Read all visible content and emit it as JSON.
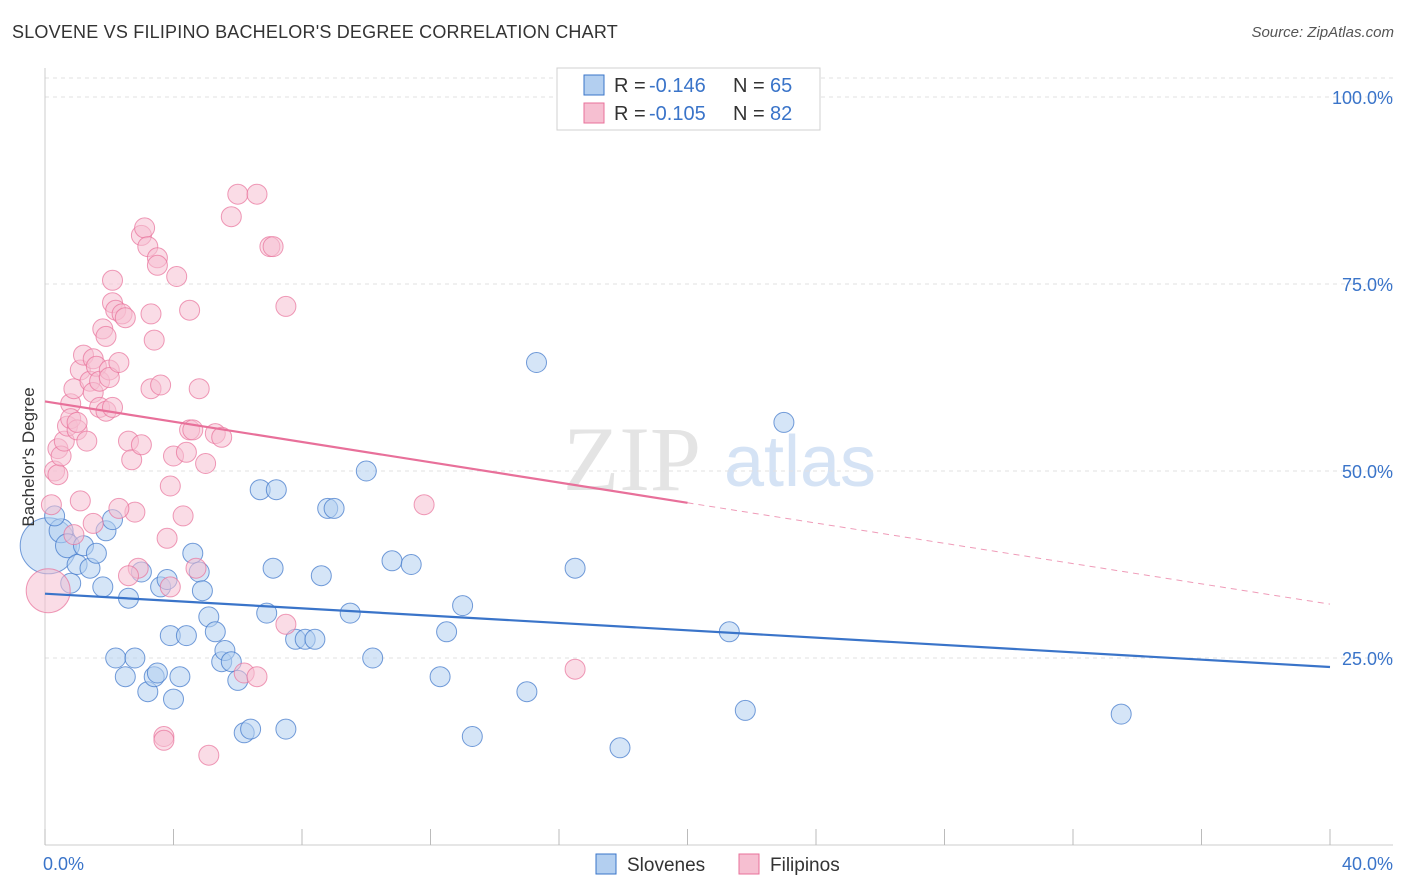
{
  "title": "SLOVENE VS FILIPINO BACHELOR'S DEGREE CORRELATION CHART",
  "source": "Source: ZipAtlas.com",
  "watermark": {
    "zip": "ZIP",
    "atlas": "atlas"
  },
  "legend": {
    "rows": [
      {
        "r_label": "R =",
        "r_value": "-0.146",
        "n_label": "N =",
        "n_value": "65"
      },
      {
        "r_label": "R =",
        "r_value": "-0.105",
        "n_label": "N =",
        "n_value": "82"
      }
    ]
  },
  "bottom_legend": {
    "series1": "Slovenes",
    "series2": "Filipinos"
  },
  "colors": {
    "blue": "#3a74c9",
    "blue_fill": "#b3cff0",
    "pink": "#e8709a",
    "pink_fill": "#f6bfd1"
  },
  "chart_data": {
    "type": "scatter",
    "title": "SLOVENE VS FILIPINO BACHELOR'S DEGREE CORRELATION CHART",
    "ylabel": "Bachelor's Degree",
    "xlabel": "",
    "xlim": [
      0,
      40
    ],
    "ylim": [
      0,
      100
    ],
    "x_tick_labels": [
      "0.0%",
      "40.0%"
    ],
    "y_ticks": [
      {
        "value": 25,
        "label": "25.0%"
      },
      {
        "value": 50,
        "label": "50.0%"
      },
      {
        "value": 75,
        "label": "75.0%"
      },
      {
        "value": 100,
        "label": "100.0%"
      }
    ],
    "series": [
      {
        "name": "Slovenes",
        "color": "#3a74c9",
        "trend": {
          "x0": 0,
          "y0": 33.6,
          "x1": 40,
          "y1": 23.8,
          "solid_to": 40
        },
        "points": [
          [
            0.1,
            40,
            28
          ],
          [
            0.5,
            42,
            12
          ],
          [
            0.7,
            40,
            12
          ],
          [
            0.3,
            44,
            10
          ],
          [
            0.8,
            35,
            10
          ],
          [
            1.0,
            37.5,
            10
          ],
          [
            1.2,
            40,
            10
          ],
          [
            1.4,
            37,
            10
          ],
          [
            1.6,
            39,
            10
          ],
          [
            1.8,
            34.5,
            10
          ],
          [
            1.9,
            42,
            10
          ],
          [
            2.1,
            43.5,
            10
          ],
          [
            2.2,
            25,
            10
          ],
          [
            2.5,
            22.5,
            10
          ],
          [
            2.6,
            33,
            10
          ],
          [
            2.8,
            25,
            10
          ],
          [
            3.0,
            36.5,
            10
          ],
          [
            3.2,
            20.5,
            10
          ],
          [
            3.4,
            22.5,
            10
          ],
          [
            3.5,
            23,
            10
          ],
          [
            3.6,
            34.5,
            10
          ],
          [
            3.8,
            35.5,
            10
          ],
          [
            3.9,
            28,
            10
          ],
          [
            4.0,
            19.5,
            10
          ],
          [
            4.2,
            22.5,
            10
          ],
          [
            4.4,
            28,
            10
          ],
          [
            4.6,
            39,
            10
          ],
          [
            4.8,
            36.5,
            10
          ],
          [
            4.9,
            34,
            10
          ],
          [
            5.1,
            30.5,
            10
          ],
          [
            5.3,
            28.5,
            10
          ],
          [
            5.5,
            24.5,
            10
          ],
          [
            5.6,
            26,
            10
          ],
          [
            5.8,
            24.5,
            10
          ],
          [
            6.0,
            22,
            10
          ],
          [
            6.2,
            15,
            10
          ],
          [
            6.4,
            15.5,
            10
          ],
          [
            6.7,
            47.5,
            10
          ],
          [
            6.9,
            31,
            10
          ],
          [
            7.1,
            37,
            10
          ],
          [
            7.2,
            47.5,
            10
          ],
          [
            7.5,
            15.5,
            10
          ],
          [
            7.8,
            27.5,
            10
          ],
          [
            8.1,
            27.5,
            10
          ],
          [
            8.4,
            27.5,
            10
          ],
          [
            8.6,
            36,
            10
          ],
          [
            8.8,
            45,
            10
          ],
          [
            9.0,
            45,
            10
          ],
          [
            9.5,
            31,
            10
          ],
          [
            10.0,
            50,
            10
          ],
          [
            10.2,
            25,
            10
          ],
          [
            10.8,
            38,
            10
          ],
          [
            11.4,
            37.5,
            10
          ],
          [
            12.3,
            22.5,
            10
          ],
          [
            12.5,
            28.5,
            10
          ],
          [
            13.0,
            32,
            10
          ],
          [
            13.3,
            14.5,
            10
          ],
          [
            15.0,
            20.5,
            10
          ],
          [
            15.3,
            64.5,
            10
          ],
          [
            16.5,
            37,
            10
          ],
          [
            17.9,
            13,
            10
          ],
          [
            21.3,
            28.5,
            10
          ],
          [
            21.8,
            18,
            10
          ],
          [
            23.0,
            56.5,
            10
          ],
          [
            33.5,
            17.5,
            10
          ]
        ]
      },
      {
        "name": "Filipinos",
        "color": "#e8709a",
        "trend": {
          "x0": 0,
          "y0": 59.3,
          "x1": 40,
          "y1": 32.2,
          "solid_to": 20
        },
        "points": [
          [
            0.1,
            34,
            22
          ],
          [
            0.2,
            45.5,
            10
          ],
          [
            0.3,
            50,
            10
          ],
          [
            0.4,
            49.5,
            10
          ],
          [
            0.4,
            53,
            10
          ],
          [
            0.5,
            52,
            10
          ],
          [
            0.6,
            54,
            10
          ],
          [
            0.7,
            56,
            10
          ],
          [
            0.8,
            59,
            10
          ],
          [
            0.8,
            57,
            10
          ],
          [
            0.9,
            61,
            10
          ],
          [
            1.0,
            55.5,
            10
          ],
          [
            1.0,
            56.5,
            10
          ],
          [
            1.1,
            63.5,
            10
          ],
          [
            1.2,
            65.5,
            10
          ],
          [
            1.3,
            54,
            10
          ],
          [
            1.4,
            62,
            10
          ],
          [
            1.5,
            60.5,
            10
          ],
          [
            1.5,
            65,
            10
          ],
          [
            1.6,
            64,
            10
          ],
          [
            1.7,
            62,
            10
          ],
          [
            1.7,
            58.5,
            10
          ],
          [
            1.8,
            69,
            10
          ],
          [
            1.9,
            68,
            10
          ],
          [
            1.9,
            58,
            10
          ],
          [
            2.0,
            63.5,
            10
          ],
          [
            2.0,
            62.5,
            10
          ],
          [
            2.1,
            58.5,
            10
          ],
          [
            2.1,
            75.5,
            10
          ],
          [
            2.1,
            72.5,
            10
          ],
          [
            2.2,
            71.5,
            10
          ],
          [
            2.3,
            64.5,
            10
          ],
          [
            2.4,
            71,
            10
          ],
          [
            2.5,
            70.5,
            10
          ],
          [
            2.6,
            54,
            10
          ],
          [
            2.7,
            51.5,
            10
          ],
          [
            2.8,
            44.5,
            10
          ],
          [
            2.9,
            37,
            10
          ],
          [
            3.0,
            53.5,
            10
          ],
          [
            3.0,
            81.5,
            10
          ],
          [
            3.1,
            82.5,
            10
          ],
          [
            3.2,
            80,
            10
          ],
          [
            3.3,
            71,
            10
          ],
          [
            3.3,
            61,
            10
          ],
          [
            3.4,
            67.5,
            10
          ],
          [
            3.5,
            78.5,
            10
          ],
          [
            3.5,
            77.5,
            10
          ],
          [
            3.6,
            61.5,
            10
          ],
          [
            3.7,
            14.5,
            10
          ],
          [
            3.7,
            14,
            10
          ],
          [
            3.8,
            41,
            10
          ],
          [
            3.9,
            34.5,
            10
          ],
          [
            4.0,
            52,
            10
          ],
          [
            4.1,
            76,
            10
          ],
          [
            4.3,
            44,
            10
          ],
          [
            4.4,
            52.5,
            10
          ],
          [
            4.5,
            55.5,
            10
          ],
          [
            4.5,
            71.5,
            10
          ],
          [
            4.6,
            55.5,
            10
          ],
          [
            4.7,
            37,
            10
          ],
          [
            4.8,
            61,
            10
          ],
          [
            5.0,
            51,
            10
          ],
          [
            5.1,
            12,
            10
          ],
          [
            5.3,
            55,
            10
          ],
          [
            5.5,
            54.5,
            10
          ],
          [
            5.8,
            84,
            10
          ],
          [
            6.0,
            87,
            10
          ],
          [
            6.2,
            23,
            10
          ],
          [
            6.6,
            87,
            10
          ],
          [
            6.6,
            22.5,
            10
          ],
          [
            7.0,
            80,
            10
          ],
          [
            7.1,
            80,
            10
          ],
          [
            7.5,
            72,
            10
          ],
          [
            7.5,
            29.5,
            10
          ],
          [
            11.8,
            45.5,
            10
          ],
          [
            16.5,
            23.5,
            10
          ],
          [
            1.5,
            43,
            10
          ],
          [
            2.3,
            45,
            10
          ],
          [
            3.9,
            48,
            10
          ],
          [
            1.1,
            46,
            10
          ],
          [
            2.6,
            36,
            10
          ],
          [
            0.9,
            41.5,
            10
          ]
        ]
      }
    ]
  }
}
